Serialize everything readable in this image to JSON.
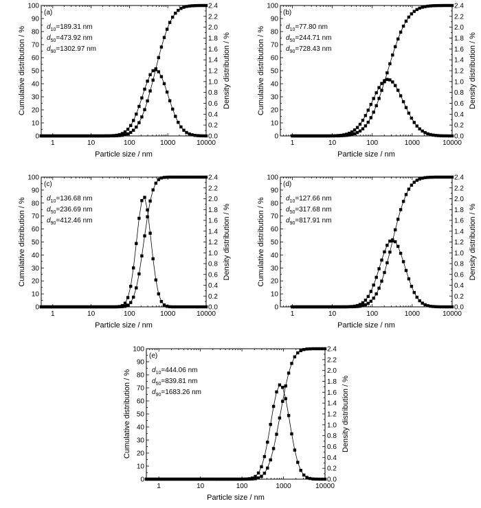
{
  "chart_data": [
    {
      "type": "scatter",
      "panel_label": "(a)",
      "xlabel": "Particle size / nm",
      "ylabel": "Cumulative distribution / %",
      "y2label": "Density distribution / %",
      "xscale": "log",
      "xlim": [
        0.5,
        10000
      ],
      "ylim": [
        0,
        100
      ],
      "y2lim": [
        0,
        2.4
      ],
      "xticks": [
        "1",
        "10",
        "100",
        "1000",
        "10000"
      ],
      "yticks": [
        "0",
        "10",
        "20",
        "30",
        "40",
        "50",
        "60",
        "70",
        "80",
        "90",
        "100"
      ],
      "y2ticks": [
        "0.0",
        "0.2",
        "0.4",
        "0.6",
        "0.8",
        "1.0",
        "1.2",
        "1.4",
        "1.6",
        "1.8",
        "2.0",
        "2.2",
        "2.4"
      ],
      "annotations": [
        {
          "sym": "d",
          "sub": "10",
          "text": "=189.31 nm"
        },
        {
          "sym": "d",
          "sub": "50",
          "text": "=473.92 nm"
        },
        {
          "sym": "d",
          "sub": "90",
          "text": "=1302.97 nm"
        }
      ],
      "d50": 473.92,
      "sigma": 0.77,
      "xmin_data": 0.5,
      "peak_density": 1.22,
      "n_points": 60,
      "grid": false,
      "marker": "filled square"
    },
    {
      "type": "scatter",
      "panel_label": "(b)",
      "xlabel": "Particle size / nm",
      "ylabel": "Cumulative distribution / %",
      "y2label": "Density distribution / %",
      "xscale": "log",
      "xlim": [
        0.5,
        10000
      ],
      "ylim": [
        0,
        100
      ],
      "y2lim": [
        0,
        2.4
      ],
      "xticks": [
        "1",
        "10",
        "100",
        "1000",
        "10000"
      ],
      "yticks": [
        "0",
        "10",
        "20",
        "30",
        "40",
        "50",
        "60",
        "70",
        "80",
        "90",
        "100"
      ],
      "y2ticks": [
        "0.0",
        "0.2",
        "0.4",
        "0.6",
        "0.8",
        "1.0",
        "1.2",
        "1.4",
        "1.6",
        "1.8",
        "2.0",
        "2.2",
        "2.4"
      ],
      "annotations": [
        {
          "sym": "d",
          "sub": "10",
          "text": "=77.80 nm"
        },
        {
          "sym": "d",
          "sub": "50",
          "text": "=244.71 nm"
        },
        {
          "sym": "d",
          "sub": "90",
          "text": "=728.43 nm"
        }
      ],
      "d50": 244.71,
      "sigma": 0.9,
      "xmin_data": 1,
      "peak_density": 1.04,
      "n_points": 60,
      "grid": false,
      "marker": "filled square"
    },
    {
      "type": "scatter",
      "panel_label": "(c)",
      "xlabel": "Particle size / nm",
      "ylabel": "Cumulative distribution / %",
      "y2label": "Density distribution / %",
      "xscale": "log",
      "xlim": [
        0.5,
        10000
      ],
      "ylim": [
        0,
        100
      ],
      "y2lim": [
        0,
        2.4
      ],
      "xticks": [
        "1",
        "10",
        "100",
        "1000",
        "10000"
      ],
      "yticks": [
        "0",
        "10",
        "20",
        "30",
        "40",
        "50",
        "60",
        "70",
        "80",
        "90",
        "100"
      ],
      "y2ticks": [
        "0.0",
        "0.2",
        "0.4",
        "0.6",
        "0.8",
        "1.0",
        "1.2",
        "1.4",
        "1.6",
        "1.8",
        "2.0",
        "2.2",
        "2.4"
      ],
      "annotations": [
        {
          "sym": "d",
          "sub": "10",
          "text": "=136.68 nm"
        },
        {
          "sym": "d",
          "sub": "50",
          "text": "=236.69 nm"
        },
        {
          "sym": "d",
          "sub": "90",
          "text": "=412.46 nm"
        }
      ],
      "d50": 236.69,
      "sigma": 0.43,
      "xmin_data": 0.5,
      "peak_density": 2.04,
      "n_points": 60,
      "grid": false,
      "marker": "filled square"
    },
    {
      "type": "scatter",
      "panel_label": "(d)",
      "xlabel": "Particle size / nm",
      "ylabel": "Cumulative distribution / %",
      "y2label": "Density distribution / %",
      "xscale": "log",
      "xlim": [
        0.5,
        10000
      ],
      "ylim": [
        0,
        100
      ],
      "y2lim": [
        0,
        2.4
      ],
      "xticks": [
        "1",
        "10",
        "100",
        "1000",
        "10000"
      ],
      "yticks": [
        "0",
        "10",
        "20",
        "30",
        "40",
        "50",
        "60",
        "70",
        "80",
        "90",
        "100"
      ],
      "y2ticks": [
        "0.0",
        "0.2",
        "0.4",
        "0.6",
        "0.8",
        "1.0",
        "1.2",
        "1.4",
        "1.6",
        "1.8",
        "2.0",
        "2.2",
        "2.4"
      ],
      "annotations": [
        {
          "sym": "d",
          "sub": "10",
          "text": "=127.66 nm"
        },
        {
          "sym": "d",
          "sub": "50",
          "text": "=317.68 nm"
        },
        {
          "sym": "d",
          "sub": "90",
          "text": "=817.91 nm"
        }
      ],
      "d50": 317.68,
      "sigma": 0.72,
      "xmin_data": 1,
      "peak_density": 1.24,
      "n_points": 60,
      "grid": false,
      "marker": "filled square"
    },
    {
      "type": "scatter",
      "panel_label": "(e)",
      "xlabel": "Particle size / nm",
      "ylabel": "Cumulative distribution / %",
      "y2label": "Density distribution / %",
      "xscale": "log",
      "xlim": [
        0.5,
        10000
      ],
      "ylim": [
        0,
        100
      ],
      "y2lim": [
        0,
        2.4
      ],
      "xticks": [
        "1",
        "10",
        "100",
        "1000",
        "10000"
      ],
      "yticks": [
        "0",
        "10",
        "20",
        "30",
        "40",
        "50",
        "60",
        "70",
        "80",
        "90",
        "100"
      ],
      "y2ticks": [
        "0.0",
        "0.2",
        "0.4",
        "0.6",
        "0.8",
        "1.0",
        "1.2",
        "1.4",
        "1.6",
        "1.8",
        "2.0",
        "2.2",
        "2.4"
      ],
      "annotations": [
        {
          "sym": "d",
          "sub": "10",
          "text": "=444.06 nm"
        },
        {
          "sym": "d",
          "sub": "50",
          "text": "=839.81 nm"
        },
        {
          "sym": "d",
          "sub": "90",
          "text": "=1683.26 nm"
        }
      ],
      "d50": 839.81,
      "sigma": 0.52,
      "xmin_data": 0.5,
      "peak_density": 1.74,
      "n_points": 60,
      "grid": false,
      "marker": "filled square"
    }
  ]
}
